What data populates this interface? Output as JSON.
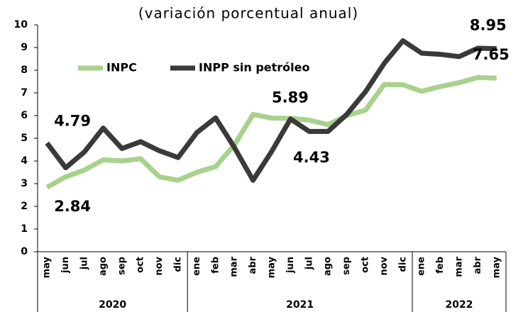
{
  "chart_data": {
    "type": "line",
    "title": "(variación porcentual anual)",
    "categories": [
      "may",
      "jun",
      "jul",
      "ago",
      "sep",
      "oct",
      "nov",
      "dic",
      "ene",
      "feb",
      "mar",
      "abr",
      "may",
      "jun",
      "jul",
      "ago",
      "sep",
      "oct",
      "nov",
      "dic",
      "ene",
      "feb",
      "mar",
      "abr",
      "may"
    ],
    "year_groups": [
      {
        "label": "2020",
        "start": 0,
        "end": 7
      },
      {
        "label": "2021",
        "start": 8,
        "end": 19
      },
      {
        "label": "2022",
        "start": 20,
        "end": 24
      }
    ],
    "series": [
      {
        "name": "INPC",
        "color": "#a9d18e",
        "label_color": "#538135",
        "values": [
          2.84,
          3.3,
          3.6,
          4.05,
          4.0,
          4.1,
          3.3,
          3.15,
          3.5,
          3.75,
          4.7,
          6.05,
          5.89,
          5.88,
          5.8,
          5.6,
          6.0,
          6.24,
          7.37,
          7.36,
          7.07,
          7.28,
          7.45,
          7.68,
          7.65
        ],
        "value_labels": [
          "2.84",
          null,
          null,
          null,
          null,
          null,
          null,
          null,
          null,
          null,
          null,
          null,
          "5.89",
          null,
          null,
          null,
          null,
          null,
          null,
          null,
          null,
          null,
          null,
          null,
          "7.65"
        ]
      },
      {
        "name": "INPP sin petróleo",
        "color": "#3a3a3a",
        "label_color": "#1a1a1a",
        "values": [
          4.79,
          3.7,
          4.4,
          5.45,
          4.55,
          4.85,
          4.45,
          4.15,
          5.25,
          5.9,
          4.6,
          3.15,
          4.43,
          5.85,
          5.3,
          5.3,
          6.05,
          7.05,
          8.3,
          9.3,
          8.75,
          8.7,
          8.6,
          8.97,
          8.95
        ],
        "value_labels": [
          "4.79",
          null,
          null,
          null,
          null,
          null,
          null,
          null,
          null,
          null,
          null,
          null,
          "4.43",
          null,
          null,
          null,
          null,
          null,
          null,
          null,
          null,
          null,
          null,
          null,
          "8.95"
        ]
      }
    ],
    "ylim": [
      0,
      10
    ],
    "yticks": [
      0,
      1,
      2,
      3,
      4,
      5,
      6,
      7,
      8,
      9,
      10
    ],
    "grid": false
  }
}
